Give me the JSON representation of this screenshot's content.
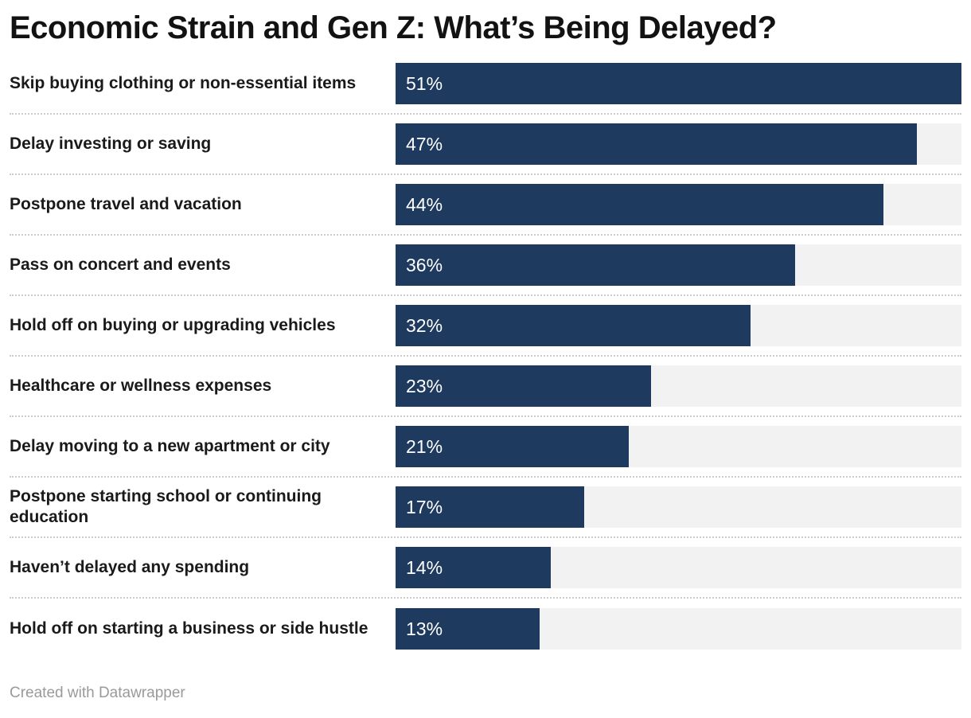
{
  "chart_data": {
    "type": "bar",
    "title": "Economic Strain and Gen Z: What’s Being Delayed?",
    "orientation": "horizontal",
    "xlim": [
      0,
      51
    ],
    "grid": false,
    "legend": "none",
    "value_suffix": "%",
    "bar_color": "#1e3a5e",
    "track_color": "#f2f2f2",
    "divider_color": "#cccccc",
    "categories": [
      "Skip buying clothing or non-essential items",
      "Delay investing or saving",
      "Postpone travel and vacation",
      "Pass on concert and events",
      "Hold off on buying or upgrading vehicles",
      "Healthcare or wellness expenses",
      "Delay moving to a new apartment or city",
      "Postpone starting school or continuing education",
      "Haven’t delayed any spending",
      "Hold off on starting a business or side hustle"
    ],
    "values": [
      51,
      47,
      44,
      36,
      32,
      23,
      21,
      17,
      14,
      13
    ],
    "value_labels": [
      "51%",
      "47%",
      "44%",
      "36%",
      "32%",
      "23%",
      "21%",
      "17%",
      "14%",
      "13%"
    ]
  },
  "footer": {
    "credit": "Created with Datawrapper"
  }
}
